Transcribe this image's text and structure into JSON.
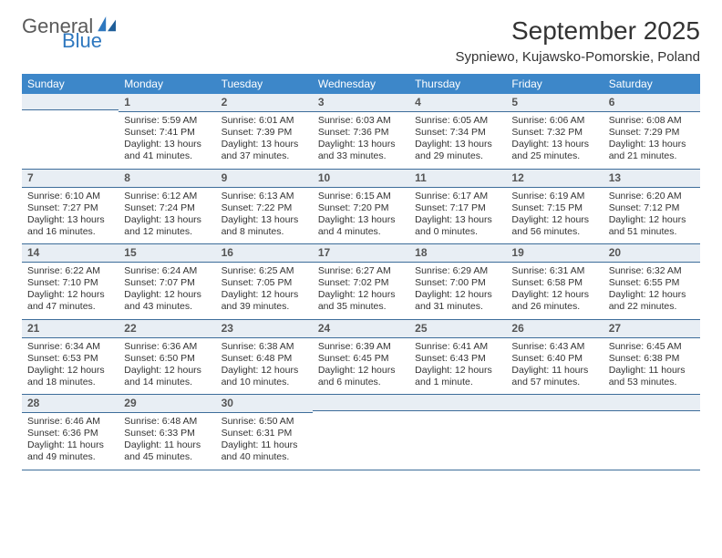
{
  "logo": {
    "word1": "General",
    "word2": "Blue",
    "color1": "#5a5a5a",
    "color2": "#2f78bf"
  },
  "title": "September 2025",
  "subtitle": "Sypniewo, Kujawsko-Pomorskie, Poland",
  "colors": {
    "header_bg": "#3d87c9",
    "header_text": "#ffffff",
    "daynum_bg": "#e8eef4",
    "rule": "#3d6d9a",
    "text": "#333333"
  },
  "weekdays": [
    "Sunday",
    "Monday",
    "Tuesday",
    "Wednesday",
    "Thursday",
    "Friday",
    "Saturday"
  ],
  "cells": [
    {
      "num": "",
      "sunrise": "",
      "sunset": "",
      "daylight": ""
    },
    {
      "num": "1",
      "sunrise": "Sunrise: 5:59 AM",
      "sunset": "Sunset: 7:41 PM",
      "daylight": "Daylight: 13 hours and 41 minutes."
    },
    {
      "num": "2",
      "sunrise": "Sunrise: 6:01 AM",
      "sunset": "Sunset: 7:39 PM",
      "daylight": "Daylight: 13 hours and 37 minutes."
    },
    {
      "num": "3",
      "sunrise": "Sunrise: 6:03 AM",
      "sunset": "Sunset: 7:36 PM",
      "daylight": "Daylight: 13 hours and 33 minutes."
    },
    {
      "num": "4",
      "sunrise": "Sunrise: 6:05 AM",
      "sunset": "Sunset: 7:34 PM",
      "daylight": "Daylight: 13 hours and 29 minutes."
    },
    {
      "num": "5",
      "sunrise": "Sunrise: 6:06 AM",
      "sunset": "Sunset: 7:32 PM",
      "daylight": "Daylight: 13 hours and 25 minutes."
    },
    {
      "num": "6",
      "sunrise": "Sunrise: 6:08 AM",
      "sunset": "Sunset: 7:29 PM",
      "daylight": "Daylight: 13 hours and 21 minutes."
    },
    {
      "num": "7",
      "sunrise": "Sunrise: 6:10 AM",
      "sunset": "Sunset: 7:27 PM",
      "daylight": "Daylight: 13 hours and 16 minutes."
    },
    {
      "num": "8",
      "sunrise": "Sunrise: 6:12 AM",
      "sunset": "Sunset: 7:24 PM",
      "daylight": "Daylight: 13 hours and 12 minutes."
    },
    {
      "num": "9",
      "sunrise": "Sunrise: 6:13 AM",
      "sunset": "Sunset: 7:22 PM",
      "daylight": "Daylight: 13 hours and 8 minutes."
    },
    {
      "num": "10",
      "sunrise": "Sunrise: 6:15 AM",
      "sunset": "Sunset: 7:20 PM",
      "daylight": "Daylight: 13 hours and 4 minutes."
    },
    {
      "num": "11",
      "sunrise": "Sunrise: 6:17 AM",
      "sunset": "Sunset: 7:17 PM",
      "daylight": "Daylight: 13 hours and 0 minutes."
    },
    {
      "num": "12",
      "sunrise": "Sunrise: 6:19 AM",
      "sunset": "Sunset: 7:15 PM",
      "daylight": "Daylight: 12 hours and 56 minutes."
    },
    {
      "num": "13",
      "sunrise": "Sunrise: 6:20 AM",
      "sunset": "Sunset: 7:12 PM",
      "daylight": "Daylight: 12 hours and 51 minutes."
    },
    {
      "num": "14",
      "sunrise": "Sunrise: 6:22 AM",
      "sunset": "Sunset: 7:10 PM",
      "daylight": "Daylight: 12 hours and 47 minutes."
    },
    {
      "num": "15",
      "sunrise": "Sunrise: 6:24 AM",
      "sunset": "Sunset: 7:07 PM",
      "daylight": "Daylight: 12 hours and 43 minutes."
    },
    {
      "num": "16",
      "sunrise": "Sunrise: 6:25 AM",
      "sunset": "Sunset: 7:05 PM",
      "daylight": "Daylight: 12 hours and 39 minutes."
    },
    {
      "num": "17",
      "sunrise": "Sunrise: 6:27 AM",
      "sunset": "Sunset: 7:02 PM",
      "daylight": "Daylight: 12 hours and 35 minutes."
    },
    {
      "num": "18",
      "sunrise": "Sunrise: 6:29 AM",
      "sunset": "Sunset: 7:00 PM",
      "daylight": "Daylight: 12 hours and 31 minutes."
    },
    {
      "num": "19",
      "sunrise": "Sunrise: 6:31 AM",
      "sunset": "Sunset: 6:58 PM",
      "daylight": "Daylight: 12 hours and 26 minutes."
    },
    {
      "num": "20",
      "sunrise": "Sunrise: 6:32 AM",
      "sunset": "Sunset: 6:55 PM",
      "daylight": "Daylight: 12 hours and 22 minutes."
    },
    {
      "num": "21",
      "sunrise": "Sunrise: 6:34 AM",
      "sunset": "Sunset: 6:53 PM",
      "daylight": "Daylight: 12 hours and 18 minutes."
    },
    {
      "num": "22",
      "sunrise": "Sunrise: 6:36 AM",
      "sunset": "Sunset: 6:50 PM",
      "daylight": "Daylight: 12 hours and 14 minutes."
    },
    {
      "num": "23",
      "sunrise": "Sunrise: 6:38 AM",
      "sunset": "Sunset: 6:48 PM",
      "daylight": "Daylight: 12 hours and 10 minutes."
    },
    {
      "num": "24",
      "sunrise": "Sunrise: 6:39 AM",
      "sunset": "Sunset: 6:45 PM",
      "daylight": "Daylight: 12 hours and 6 minutes."
    },
    {
      "num": "25",
      "sunrise": "Sunrise: 6:41 AM",
      "sunset": "Sunset: 6:43 PM",
      "daylight": "Daylight: 12 hours and 1 minute."
    },
    {
      "num": "26",
      "sunrise": "Sunrise: 6:43 AM",
      "sunset": "Sunset: 6:40 PM",
      "daylight": "Daylight: 11 hours and 57 minutes."
    },
    {
      "num": "27",
      "sunrise": "Sunrise: 6:45 AM",
      "sunset": "Sunset: 6:38 PM",
      "daylight": "Daylight: 11 hours and 53 minutes."
    },
    {
      "num": "28",
      "sunrise": "Sunrise: 6:46 AM",
      "sunset": "Sunset: 6:36 PM",
      "daylight": "Daylight: 11 hours and 49 minutes."
    },
    {
      "num": "29",
      "sunrise": "Sunrise: 6:48 AM",
      "sunset": "Sunset: 6:33 PM",
      "daylight": "Daylight: 11 hours and 45 minutes."
    },
    {
      "num": "30",
      "sunrise": "Sunrise: 6:50 AM",
      "sunset": "Sunset: 6:31 PM",
      "daylight": "Daylight: 11 hours and 40 minutes."
    },
    {
      "num": "",
      "sunrise": "",
      "sunset": "",
      "daylight": ""
    },
    {
      "num": "",
      "sunrise": "",
      "sunset": "",
      "daylight": ""
    },
    {
      "num": "",
      "sunrise": "",
      "sunset": "",
      "daylight": ""
    },
    {
      "num": "",
      "sunrise": "",
      "sunset": "",
      "daylight": ""
    }
  ]
}
